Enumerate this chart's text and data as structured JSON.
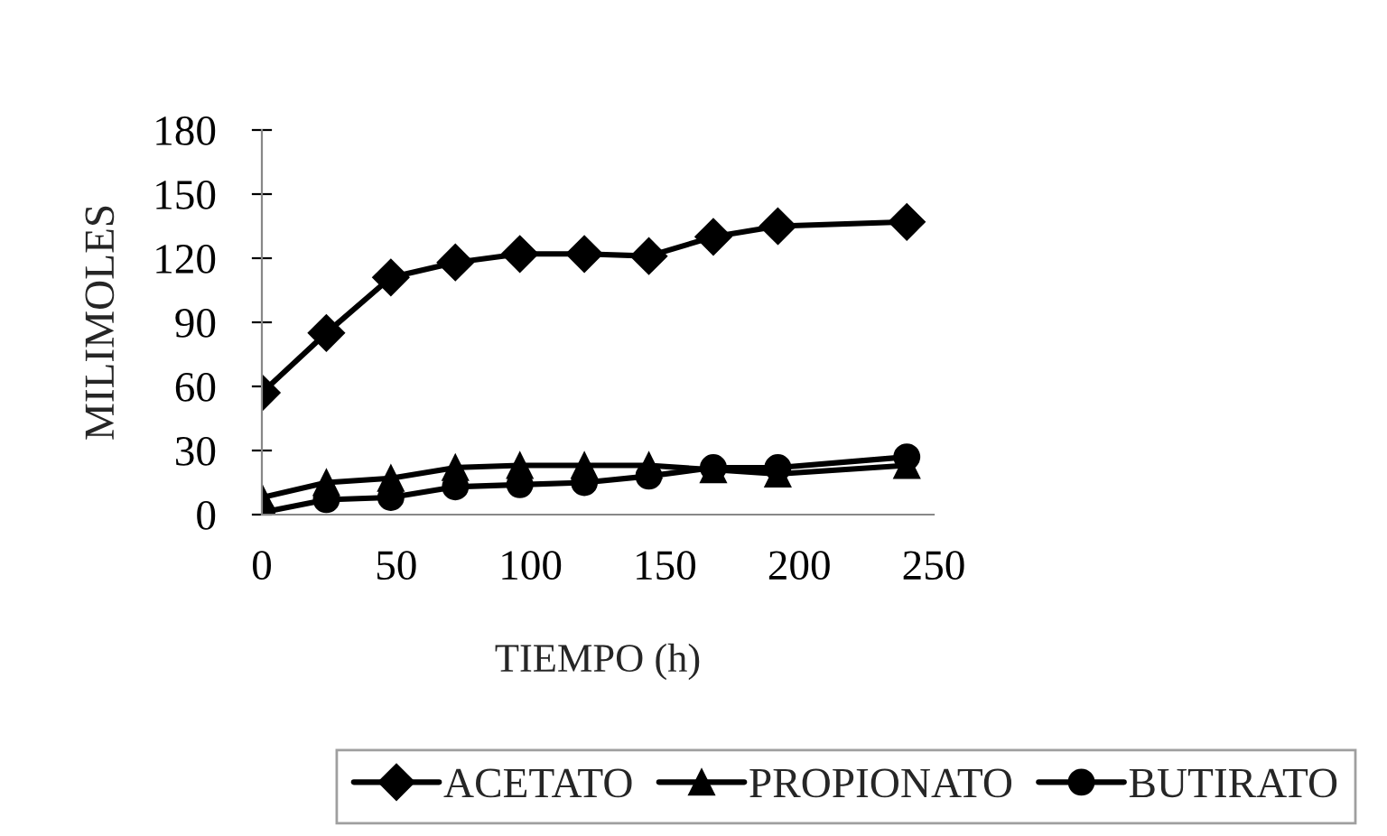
{
  "chart_data": {
    "type": "line",
    "xlabel": "TIEMPO (h)",
    "ylabel": "MILIMOLES",
    "x": [
      0,
      24,
      48,
      72,
      96,
      120,
      144,
      168,
      192,
      240
    ],
    "series": [
      {
        "name": "ACETATO",
        "color": "#000000",
        "marker": "diamond",
        "values": [
          57,
          85,
          111,
          118,
          122,
          122,
          121,
          130,
          135,
          137
        ]
      },
      {
        "name": "PROPIONATO",
        "color": "#000000",
        "marker": "triangle",
        "values": [
          8,
          15,
          17,
          22,
          23,
          23,
          23,
          21,
          19,
          23
        ]
      },
      {
        "name": "BUTIRATO",
        "color": "#000000",
        "marker": "circle",
        "values": [
          1,
          7,
          8,
          13,
          14,
          15,
          18,
          22,
          22,
          27
        ]
      }
    ],
    "xlim": [
      0,
      250
    ],
    "xticks": [
      0,
      50,
      100,
      150,
      200,
      250
    ],
    "ylim": [
      0,
      180
    ],
    "yticks": [
      0,
      30,
      60,
      90,
      120,
      150,
      180
    ],
    "grid": false,
    "legend": "bottom",
    "line_style": "solid"
  }
}
